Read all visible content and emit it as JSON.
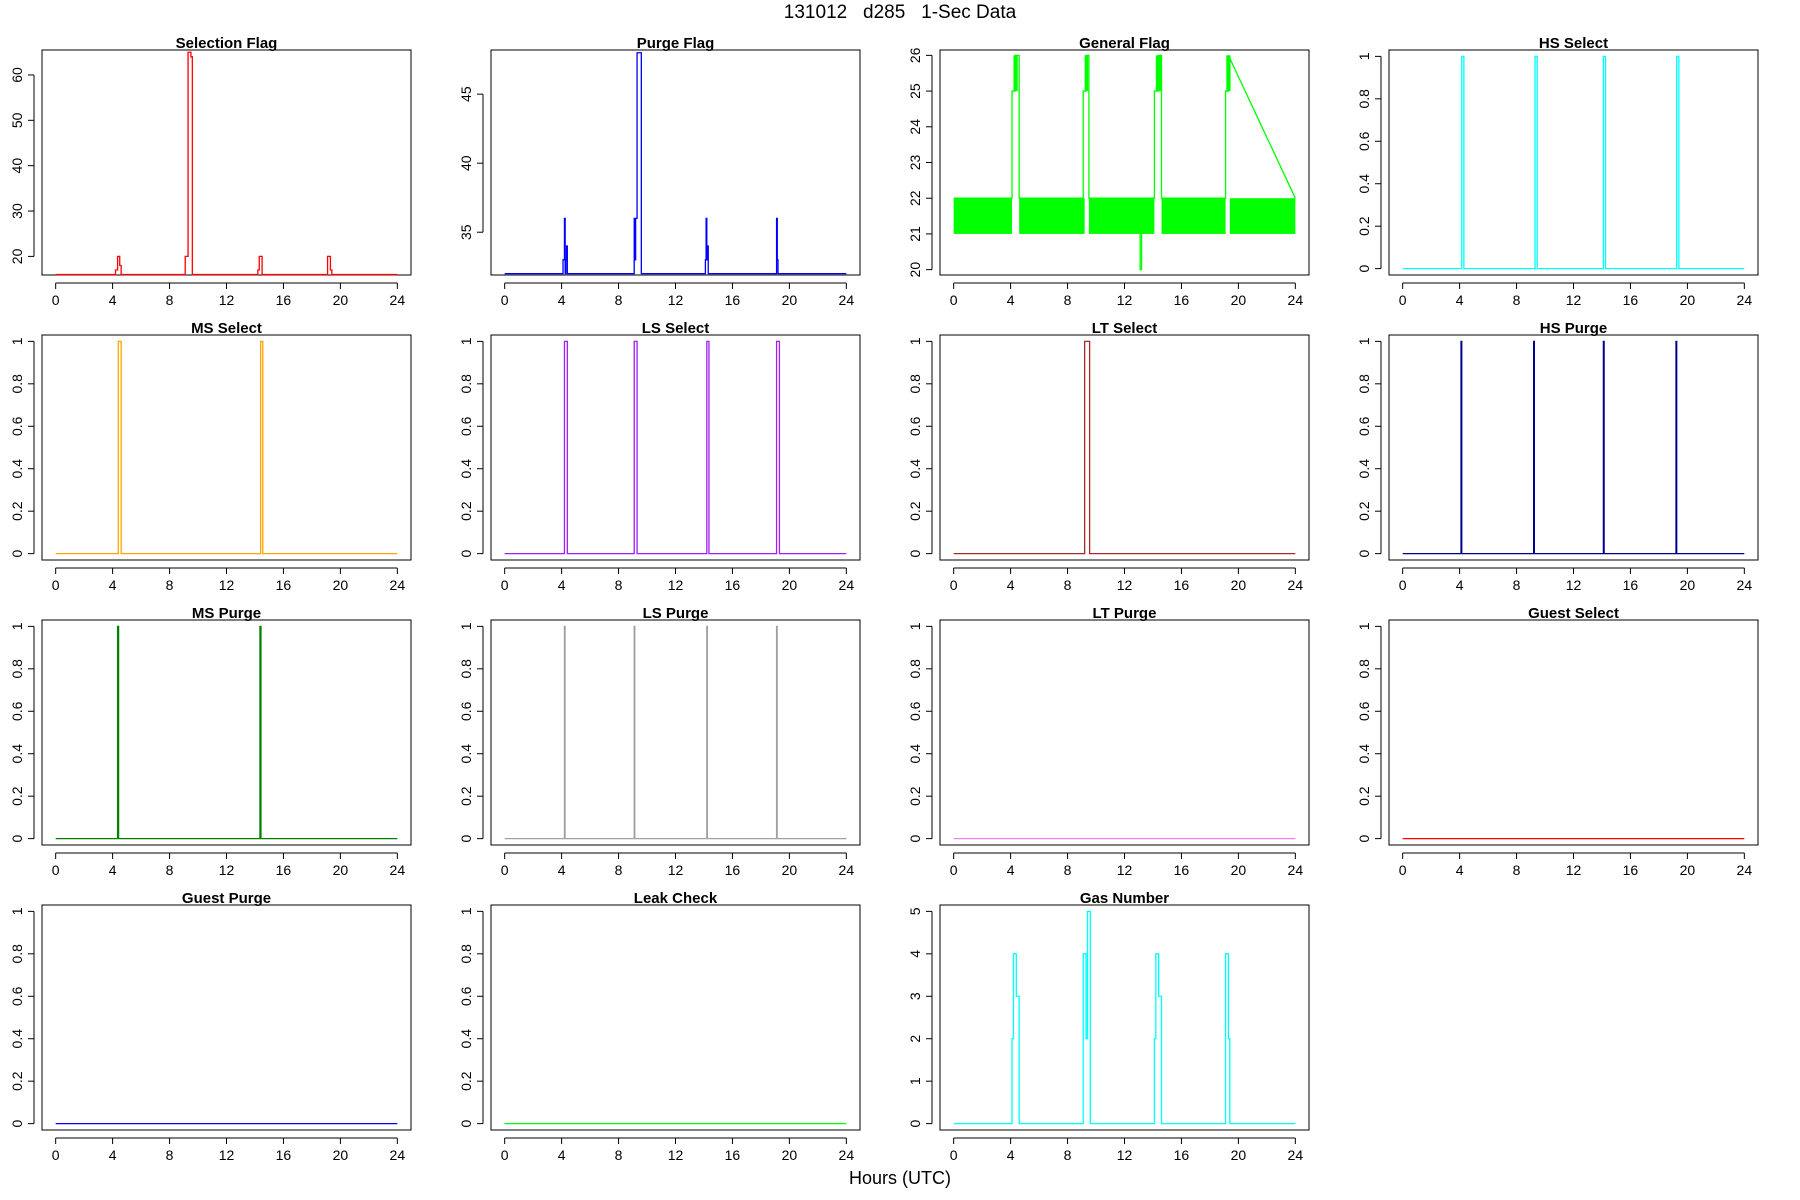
{
  "title": "131012   d285   1-Sec Data",
  "xlabel": "Hours (UTC)",
  "chart_data": [
    {
      "type": "line",
      "title": "Selection Flag",
      "color": "#ff0000",
      "xlim": [
        0,
        24
      ],
      "ylim": [
        15.9,
        65.5
      ],
      "xticks": [
        0,
        4,
        8,
        12,
        16,
        20,
        24
      ],
      "yticks": [
        20,
        30,
        40,
        50,
        60
      ],
      "x": [
        0,
        4.2,
        4.2,
        4.35,
        4.35,
        4.5,
        4.5,
        4.6,
        4.6,
        9.1,
        9.1,
        9.3,
        9.3,
        9.5,
        9.5,
        9.6,
        9.6,
        14.2,
        14.2,
        14.3,
        14.3,
        14.5,
        14.5,
        19.1,
        19.1,
        19.3,
        19.3,
        19.4,
        19.4,
        24
      ],
      "y": [
        16,
        16,
        17,
        17,
        20,
        20,
        18,
        18,
        16,
        16,
        20,
        20,
        65,
        65,
        64,
        64,
        16,
        16,
        17,
        17,
        20,
        20,
        16,
        16,
        20,
        20,
        17,
        17,
        16,
        16
      ]
    },
    {
      "type": "line",
      "title": "Purge Flag",
      "color": "#0000ff",
      "xlim": [
        0,
        24
      ],
      "ylim": [
        31.9,
        48.2
      ],
      "xticks": [
        0,
        4,
        8,
        12,
        16,
        20,
        24
      ],
      "yticks": [
        35,
        40,
        45
      ],
      "x": [
        0,
        4.1,
        4.1,
        4.2,
        4.2,
        4.25,
        4.25,
        4.3,
        4.3,
        4.35,
        4.35,
        4.4,
        4.4,
        4.5,
        4.5,
        9.1,
        9.1,
        9.15,
        9.15,
        9.2,
        9.2,
        9.3,
        9.3,
        9.6,
        9.6,
        14.1,
        14.1,
        14.15,
        14.15,
        14.2,
        14.2,
        14.25,
        14.25,
        14.3,
        14.3,
        14.4,
        14.4,
        19.1,
        19.1,
        19.15,
        19.15,
        19.2,
        19.2,
        24
      ],
      "y": [
        32,
        32,
        33,
        33,
        36,
        36,
        32,
        32,
        33,
        33,
        34,
        34,
        32,
        32,
        32,
        32,
        36,
        36,
        33,
        33,
        36,
        36,
        48,
        48,
        32,
        32,
        33,
        33,
        36,
        36,
        33,
        33,
        34,
        34,
        32,
        32,
        32,
        32,
        36,
        36,
        33,
        33,
        32,
        32
      ]
    },
    {
      "type": "line",
      "title": "General Flag",
      "color": "#00ff00",
      "xlim": [
        0,
        24
      ],
      "ylim": [
        19.85,
        26.15
      ],
      "xticks": [
        0,
        4,
        8,
        12,
        16,
        20,
        24
      ],
      "yticks": [
        20,
        21,
        22,
        23,
        24,
        25,
        26
      ],
      "x": [
        0,
        4.1,
        4.1,
        4.3,
        4.3,
        4.6,
        4.6,
        9.1,
        9.1,
        9.3,
        9.3,
        9.5,
        9.5,
        13.1,
        13.1,
        13.2,
        13.2,
        14.1,
        14.1,
        14.4,
        14.4,
        14.6,
        14.6,
        19.1,
        19.1,
        19.3,
        19.3,
        24
      ],
      "y": [
        22,
        22,
        25,
        25,
        26,
        26,
        22,
        22,
        25,
        25,
        26,
        26,
        22,
        22,
        20,
        20,
        22,
        22,
        25,
        25,
        26,
        26,
        22,
        22,
        25,
        25,
        26,
        22
      ],
      "fill_bands": [
        {
          "x": [
            0,
            4.1
          ],
          "y": [
            21,
            22
          ]
        },
        {
          "x": [
            4.6,
            9.2
          ],
          "y": [
            21,
            22
          ]
        },
        {
          "x": [
            9.5,
            14.1
          ],
          "y": [
            21,
            22
          ]
        },
        {
          "x": [
            14.6,
            19.1
          ],
          "y": [
            21,
            22
          ]
        },
        {
          "x": [
            19.4,
            24
          ],
          "y": [
            21,
            22
          ]
        },
        {
          "x": [
            4.2,
            4.5
          ],
          "y": [
            25,
            26
          ]
        },
        {
          "x": [
            9.2,
            9.45
          ],
          "y": [
            25,
            26
          ]
        },
        {
          "x": [
            14.2,
            14.6
          ],
          "y": [
            25,
            26
          ]
        },
        {
          "x": [
            19.15,
            19.45
          ],
          "y": [
            25,
            26
          ]
        }
      ]
    },
    {
      "type": "line",
      "title": "HS Select",
      "color": "#00ffff",
      "xlim": [
        0,
        24
      ],
      "ylim": [
        -0.03,
        1.03
      ],
      "xticks": [
        0,
        4,
        8,
        12,
        16,
        20,
        24
      ],
      "yticks": [
        0,
        0.2,
        0.4,
        0.6,
        0.8,
        1.0
      ],
      "x": [
        0,
        4.15,
        4.15,
        4.3,
        4.3,
        9.3,
        9.3,
        9.45,
        9.45,
        14.1,
        14.1,
        14.25,
        14.25,
        19.25,
        19.25,
        19.4,
        19.4,
        24
      ],
      "y": [
        0,
        0,
        1,
        1,
        0,
        0,
        1,
        1,
        0,
        0,
        1,
        1,
        0,
        0,
        1,
        1,
        0,
        0
      ]
    },
    {
      "type": "line",
      "title": "MS Select",
      "color": "#ffa500",
      "xlim": [
        0,
        24
      ],
      "ylim": [
        -0.03,
        1.03
      ],
      "xticks": [
        0,
        4,
        8,
        12,
        16,
        20,
        24
      ],
      "yticks": [
        0,
        0.2,
        0.4,
        0.6,
        0.8,
        1.0
      ],
      "x": [
        0,
        4.4,
        4.4,
        4.6,
        4.6,
        14.4,
        14.4,
        14.55,
        14.55,
        24
      ],
      "y": [
        0,
        0,
        1,
        1,
        0,
        0,
        1,
        1,
        0,
        0
      ]
    },
    {
      "type": "line",
      "title": "LS Select",
      "color": "#a020f0",
      "xlim": [
        0,
        24
      ],
      "ylim": [
        -0.03,
        1.03
      ],
      "xticks": [
        0,
        4,
        8,
        12,
        16,
        20,
        24
      ],
      "yticks": [
        0,
        0.2,
        0.4,
        0.6,
        0.8,
        1.0
      ],
      "x": [
        0,
        4.2,
        4.2,
        4.4,
        4.4,
        9.1,
        9.1,
        9.3,
        9.3,
        14.2,
        14.2,
        14.35,
        14.35,
        19.1,
        19.1,
        19.3,
        19.3,
        24
      ],
      "y": [
        0,
        0,
        1,
        1,
        0,
        0,
        1,
        1,
        0,
        0,
        1,
        1,
        0,
        0,
        1,
        1,
        0,
        0
      ]
    },
    {
      "type": "line",
      "title": "LT Select",
      "color": "#a52a2a",
      "xlim": [
        0,
        24
      ],
      "ylim": [
        -0.03,
        1.03
      ],
      "xticks": [
        0,
        4,
        8,
        12,
        16,
        20,
        24
      ],
      "yticks": [
        0,
        0.2,
        0.4,
        0.6,
        0.8,
        1.0
      ],
      "x": [
        0,
        9.2,
        9.2,
        9.55,
        9.55,
        24
      ],
      "y": [
        0,
        0,
        1,
        1,
        0,
        0
      ]
    },
    {
      "type": "line",
      "title": "HS Purge",
      "color": "#00008b",
      "xlim": [
        0,
        24
      ],
      "ylim": [
        -0.03,
        1.03
      ],
      "xticks": [
        0,
        4,
        8,
        12,
        16,
        20,
        24
      ],
      "yticks": [
        0,
        0.2,
        0.4,
        0.6,
        0.8,
        1.0
      ],
      "x": [
        0,
        4.1,
        4.1,
        4.15,
        4.15,
        9.2,
        9.2,
        9.25,
        9.25,
        14.1,
        14.1,
        14.15,
        14.15,
        19.2,
        19.2,
        19.25,
        19.25,
        24
      ],
      "y": [
        0,
        0,
        1,
        1,
        0,
        0,
        1,
        1,
        0,
        0,
        1,
        1,
        0,
        0,
        1,
        1,
        0,
        0
      ]
    },
    {
      "type": "line",
      "title": "MS Purge",
      "color": "#008000",
      "xlim": [
        0,
        24
      ],
      "ylim": [
        -0.03,
        1.03
      ],
      "xticks": [
        0,
        4,
        8,
        12,
        16,
        20,
        24
      ],
      "yticks": [
        0,
        0.2,
        0.4,
        0.6,
        0.8,
        1.0
      ],
      "x": [
        0,
        4.35,
        4.35,
        4.42,
        4.42,
        14.35,
        14.35,
        14.42,
        14.42,
        24
      ],
      "y": [
        0,
        0,
        1,
        1,
        0,
        0,
        1,
        1,
        0,
        0
      ]
    },
    {
      "type": "line",
      "title": "LS Purge",
      "color": "#a0a0a0",
      "xlim": [
        0,
        24
      ],
      "ylim": [
        -0.03,
        1.03
      ],
      "xticks": [
        0,
        4,
        8,
        12,
        16,
        20,
        24
      ],
      "yticks": [
        0,
        0.2,
        0.4,
        0.6,
        0.8,
        1.0
      ],
      "x": [
        0,
        4.2,
        4.2,
        4.24,
        4.24,
        9.1,
        9.1,
        9.14,
        9.14,
        14.2,
        14.2,
        14.24,
        14.24,
        19.1,
        19.1,
        19.14,
        19.14,
        24
      ],
      "y": [
        0,
        0,
        1,
        1,
        0,
        0,
        1,
        1,
        0,
        0,
        1,
        1,
        0,
        0,
        1,
        1,
        0,
        0
      ]
    },
    {
      "type": "line",
      "title": "LT Purge",
      "color": "#ee82ee",
      "xlim": [
        0,
        24
      ],
      "ylim": [
        -0.03,
        1.03
      ],
      "xticks": [
        0,
        4,
        8,
        12,
        16,
        20,
        24
      ],
      "yticks": [
        0,
        0.2,
        0.4,
        0.6,
        0.8,
        1.0
      ],
      "x": [
        0,
        24
      ],
      "y": [
        0,
        0
      ]
    },
    {
      "type": "line",
      "title": "Guest Select",
      "color": "#ff0000",
      "xlim": [
        0,
        24
      ],
      "ylim": [
        -0.03,
        1.03
      ],
      "xticks": [
        0,
        4,
        8,
        12,
        16,
        20,
        24
      ],
      "yticks": [
        0,
        0.2,
        0.4,
        0.6,
        0.8,
        1.0
      ],
      "x": [
        0,
        24
      ],
      "y": [
        0,
        0
      ]
    },
    {
      "type": "line",
      "title": "Guest Purge",
      "color": "#0000ff",
      "xlim": [
        0,
        24
      ],
      "ylim": [
        -0.03,
        1.03
      ],
      "xticks": [
        0,
        4,
        8,
        12,
        16,
        20,
        24
      ],
      "yticks": [
        0,
        0.2,
        0.4,
        0.6,
        0.8,
        1.0
      ],
      "x": [
        0,
        24
      ],
      "y": [
        0,
        0
      ]
    },
    {
      "type": "line",
      "title": "Leak Check",
      "color": "#00ff00",
      "xlim": [
        0,
        24
      ],
      "ylim": [
        -0.03,
        1.03
      ],
      "xticks": [
        0,
        4,
        8,
        12,
        16,
        20,
        24
      ],
      "yticks": [
        0,
        0.2,
        0.4,
        0.6,
        0.8,
        1.0
      ],
      "x": [
        0,
        24
      ],
      "y": [
        0,
        0
      ]
    },
    {
      "type": "line",
      "title": "Gas Number",
      "color": "#00ffff",
      "xlim": [
        0,
        24
      ],
      "ylim": [
        -0.15,
        5.15
      ],
      "xticks": [
        0,
        4,
        8,
        12,
        16,
        20,
        24
      ],
      "yticks": [
        0,
        1,
        2,
        3,
        4,
        5
      ],
      "x": [
        0,
        4.1,
        4.1,
        4.2,
        4.2,
        4.4,
        4.4,
        4.6,
        4.6,
        9.1,
        9.1,
        9.3,
        9.3,
        9.4,
        9.4,
        9.6,
        9.6,
        14.1,
        14.1,
        14.2,
        14.2,
        14.4,
        14.4,
        14.6,
        14.6,
        19.1,
        19.1,
        19.3,
        19.3,
        19.4,
        19.4,
        24
      ],
      "y": [
        0,
        0,
        2,
        2,
        4,
        4,
        3,
        3,
        0,
        0,
        4,
        4,
        2,
        2,
        5,
        5,
        0,
        0,
        2,
        2,
        4,
        4,
        3,
        3,
        0,
        0,
        4,
        4,
        2,
        2,
        0,
        0
      ]
    }
  ]
}
